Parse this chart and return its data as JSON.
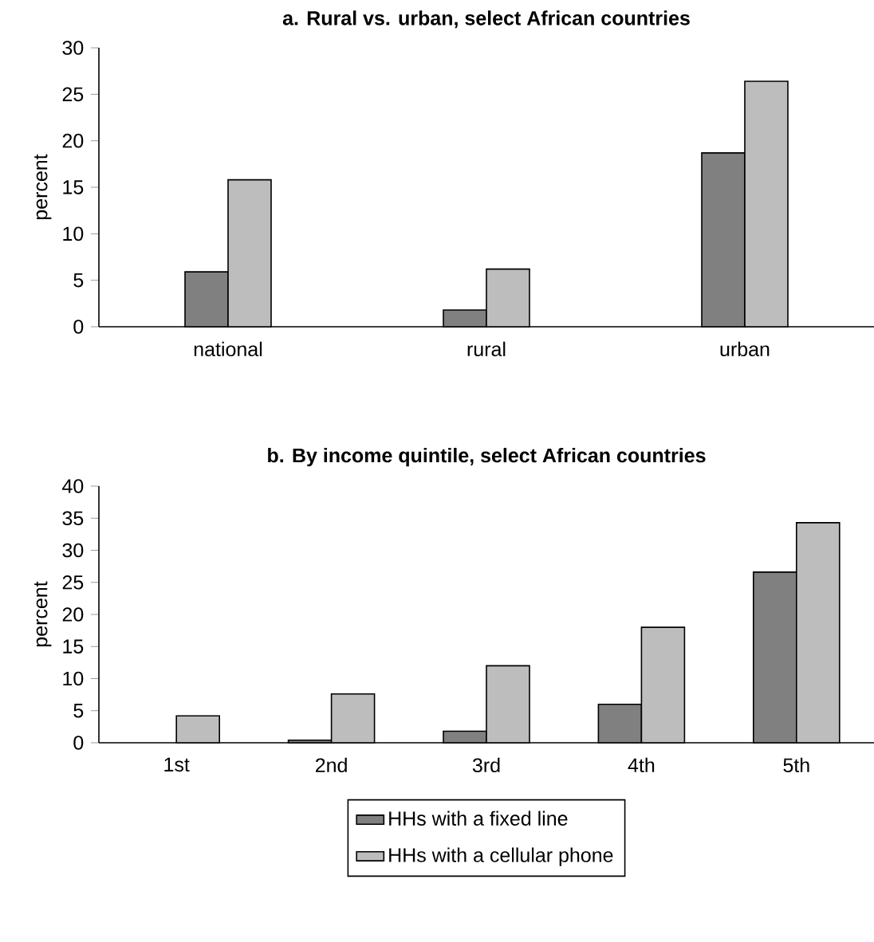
{
  "chart_data": [
    {
      "type": "bar",
      "title": "a. Rural vs. urban, select African countries",
      "ylabel": "percent",
      "categories": [
        "national",
        "rural",
        "urban"
      ],
      "ylim": [
        0,
        30
      ],
      "yticks": [
        0,
        5,
        10,
        15,
        20,
        25,
        30
      ],
      "legend": false,
      "series": [
        {
          "color": "#808080",
          "values": [
            5.9,
            1.8,
            18.7
          ]
        },
        {
          "color": "#bdbdbd",
          "values": [
            15.8,
            6.2,
            26.4
          ]
        }
      ]
    },
    {
      "type": "bar",
      "title": "b. By income quintile, select African countries",
      "ylabel": "percent",
      "categories": [
        "1st",
        "2nd",
        "3rd",
        "4th",
        "5th"
      ],
      "ylim": [
        0,
        40
      ],
      "yticks": [
        0,
        5,
        10,
        15,
        20,
        25,
        30,
        35,
        40
      ],
      "legend": "bottom",
      "series": [
        {
          "name": "HHs with a fixed line",
          "color": "#808080",
          "values": [
            null,
            0.4,
            1.8,
            6,
            26.6
          ]
        },
        {
          "name": "HHs with a cellular phone",
          "color": "#bdbdbd",
          "values": [
            4.2,
            7.6,
            12,
            18,
            34.3
          ]
        }
      ]
    }
  ]
}
